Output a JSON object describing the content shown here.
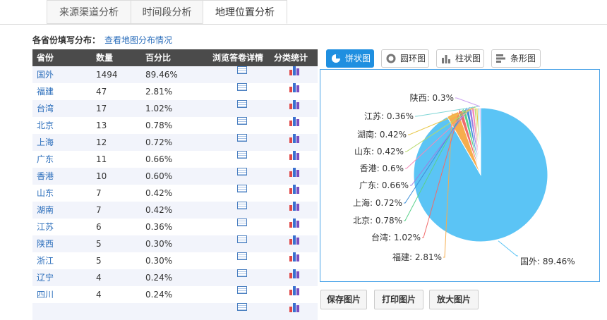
{
  "tabs": [
    "来源渠道分析",
    "时间段分析",
    "地理位置分析"
  ],
  "subtitle": {
    "label": "各省份填写分布：",
    "link": "查看地图分布情况"
  },
  "table": {
    "headers": [
      "省份",
      "数量",
      "百分比",
      "浏览答卷详情",
      "分类统计"
    ],
    "rows": [
      {
        "province": "国外",
        "count": "1494",
        "pct": "89.46%"
      },
      {
        "province": "福建",
        "count": "47",
        "pct": "2.81%"
      },
      {
        "province": "台湾",
        "count": "17",
        "pct": "1.02%"
      },
      {
        "province": "北京",
        "count": "13",
        "pct": "0.78%"
      },
      {
        "province": "上海",
        "count": "12",
        "pct": "0.72%"
      },
      {
        "province": "广东",
        "count": "11",
        "pct": "0.66%"
      },
      {
        "province": "香港",
        "count": "10",
        "pct": "0.60%"
      },
      {
        "province": "山东",
        "count": "7",
        "pct": "0.42%"
      },
      {
        "province": "湖南",
        "count": "7",
        "pct": "0.42%"
      },
      {
        "province": "江苏",
        "count": "6",
        "pct": "0.36%"
      },
      {
        "province": "陕西",
        "count": "5",
        "pct": "0.30%"
      },
      {
        "province": "浙江",
        "count": "5",
        "pct": "0.30%"
      },
      {
        "province": "辽宁",
        "count": "4",
        "pct": "0.24%"
      },
      {
        "province": "四川",
        "count": "4",
        "pct": "0.24%"
      },
      {
        "province": "",
        "count": "",
        "pct": ""
      }
    ]
  },
  "chart_buttons": [
    {
      "label": "饼状图",
      "icon": "pie-icon"
    },
    {
      "label": "圆环图",
      "icon": "donut-icon"
    },
    {
      "label": "柱状图",
      "icon": "bar-chart-icon"
    },
    {
      "label": "条形图",
      "icon": "horizontal-bar-icon"
    }
  ],
  "bottom_buttons": [
    "保存图片",
    "打印图片",
    "放大图片"
  ],
  "colors": {
    "accent": "#1f8fe0",
    "link": "#2a6dbb",
    "header": "#4b4b4b",
    "main_slice": "#5bc4f5"
  },
  "chart_data": {
    "type": "pie",
    "slices": [
      {
        "label": "国外: 89.46%",
        "value": 89.46,
        "color": "#5bc4f5"
      },
      {
        "label": "福建: 2.81%",
        "value": 2.81,
        "color": "#f6ad4e"
      },
      {
        "label": "台湾: 1.02%",
        "value": 1.02,
        "color": "#f06b6b"
      },
      {
        "label": "北京: 0.78%",
        "value": 0.78,
        "color": "#5ad18a"
      },
      {
        "label": "上海: 0.72%",
        "value": 0.72,
        "color": "#3f8fd8"
      },
      {
        "label": "广东: 0.66%",
        "value": 0.66,
        "color": "#9b7fe0"
      },
      {
        "label": "香港: 0.6%",
        "value": 0.6,
        "color": "#f58ab8"
      },
      {
        "label": "山东: 0.42%",
        "value": 0.42,
        "color": "#b7d96a"
      },
      {
        "label": "湖南: 0.42%",
        "value": 0.42,
        "color": "#e8c84a"
      },
      {
        "label": "江苏: 0.36%",
        "value": 0.36,
        "color": "#7fd6d6"
      },
      {
        "label": "陕西: 0.3%",
        "value": 0.3,
        "color": "#c9a0f0"
      }
    ]
  }
}
